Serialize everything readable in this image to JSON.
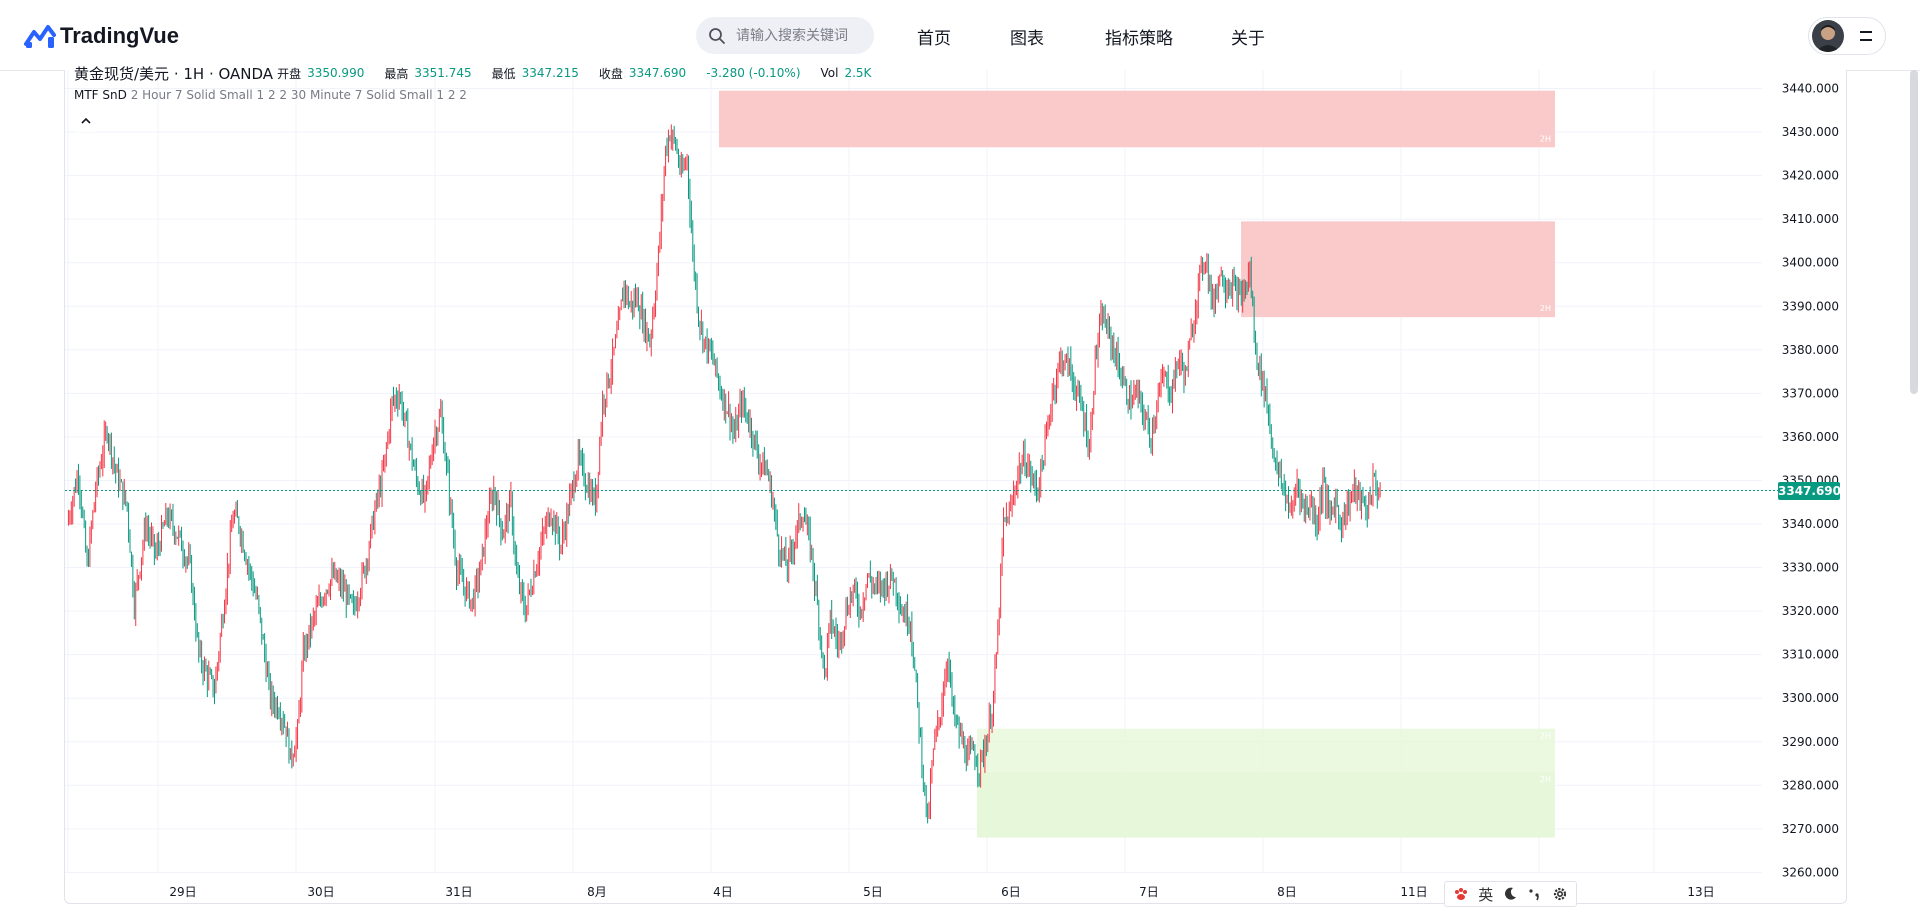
{
  "brand": {
    "name": "TradingVue"
  },
  "search": {
    "placeholder": "请输入搜索关键词"
  },
  "nav": {
    "home": "首页",
    "charts": "图表",
    "strategies": "指标策略",
    "about": "关于"
  },
  "legend": {
    "symbol": "黄金现货/美元 · 1H · OANDA",
    "open_label": "开盘",
    "open": "3350.990",
    "high_label": "最高",
    "high": "3351.745",
    "low_label": "最低",
    "low": "3347.215",
    "close_label": "收盘",
    "close": "3347.690",
    "change": "-3.280 (-0.10%)",
    "vol_label": "Vol",
    "vol": "2.5K"
  },
  "indicator": {
    "name": "MTF SnD",
    "params": "2 Hour 7 Solid Small 1 2 2 30 Minute 7 Solid Small 1 2 2"
  },
  "ime": {
    "lang": "英"
  },
  "colors": {
    "up": "#f23645",
    "down": "#089981",
    "supply": "#f9c1c1",
    "demand": "#e6f8d9",
    "last_price": "#089981"
  },
  "chart_data": {
    "type": "candlestick",
    "price_axis": [
      "3440.000",
      "3430.000",
      "3420.000",
      "3410.000",
      "3400.000",
      "3390.000",
      "3380.000",
      "3370.000",
      "3360.000",
      "3350.000",
      "3340.000",
      "3330.000",
      "3320.000",
      "3310.000",
      "3300.000",
      "3290.000",
      "3280.000",
      "3270.000",
      "3260.000"
    ],
    "ylim": [
      3260,
      3440
    ],
    "x_labels": [
      "29日",
      "30日",
      "31日",
      "8月",
      "4日",
      "5日",
      "6日",
      "7日",
      "8日",
      "11日",
      "13日"
    ],
    "last_price": "3347.690",
    "zones": [
      {
        "kind": "supply",
        "label": "2H",
        "top": 3439.5,
        "bottom": 3426.5
      },
      {
        "kind": "supply",
        "label": "2H",
        "top": 3409.5,
        "bottom": 3387.5
      },
      {
        "kind": "demand",
        "label": "2H",
        "top": 3293.0,
        "bottom": 3268.0
      },
      {
        "kind": "demand",
        "label": "2H",
        "top": 3283.0,
        "bottom": 3268.0
      }
    ],
    "path": [
      [
        0,
        3340
      ],
      [
        8,
        3352
      ],
      [
        14,
        3330
      ],
      [
        20,
        3348
      ],
      [
        28,
        3362
      ],
      [
        34,
        3352
      ],
      [
        42,
        3344
      ],
      [
        47,
        3322
      ],
      [
        55,
        3340
      ],
      [
        62,
        3333
      ],
      [
        70,
        3342
      ],
      [
        78,
        3337
      ],
      [
        86,
        3330
      ],
      [
        92,
        3310
      ],
      [
        98,
        3305
      ],
      [
        103,
        3302
      ],
      [
        109,
        3320
      ],
      [
        116,
        3342
      ],
      [
        120,
        3340
      ],
      [
        127,
        3330
      ],
      [
        133,
        3322
      ],
      [
        138,
        3310
      ],
      [
        142,
        3300
      ],
      [
        148,
        3298
      ],
      [
        153,
        3293
      ],
      [
        156,
        3286
      ],
      [
        161,
        3292
      ],
      [
        165,
        3310
      ],
      [
        172,
        3318
      ],
      [
        180,
        3325
      ],
      [
        186,
        3328
      ],
      [
        193,
        3325
      ],
      [
        200,
        3320
      ],
      [
        208,
        3330
      ],
      [
        215,
        3343
      ],
      [
        221,
        3352
      ],
      [
        227,
        3368
      ],
      [
        232,
        3370
      ],
      [
        238,
        3360
      ],
      [
        244,
        3350
      ],
      [
        250,
        3345
      ],
      [
        256,
        3360
      ],
      [
        261,
        3365
      ],
      [
        266,
        3350
      ],
      [
        272,
        3330
      ],
      [
        278,
        3325
      ],
      [
        283,
        3322
      ],
      [
        289,
        3330
      ],
      [
        293,
        3340
      ],
      [
        298,
        3348
      ],
      [
        304,
        3338
      ],
      [
        310,
        3345
      ],
      [
        314,
        3328
      ],
      [
        320,
        3320
      ],
      [
        327,
        3330
      ],
      [
        333,
        3338
      ],
      [
        338,
        3343
      ],
      [
        345,
        3335
      ],
      [
        351,
        3345
      ],
      [
        357,
        3355
      ],
      [
        362,
        3350
      ],
      [
        369,
        3345
      ],
      [
        374,
        3368
      ],
      [
        380,
        3376
      ],
      [
        385,
        3385
      ],
      [
        389,
        3395
      ],
      [
        393,
        3390
      ],
      [
        398,
        3392
      ],
      [
        403,
        3386
      ],
      [
        407,
        3382
      ],
      [
        411,
        3394
      ],
      [
        414,
        3406
      ],
      [
        418,
        3426
      ],
      [
        421,
        3430
      ],
      [
        425,
        3427
      ],
      [
        429,
        3420
      ],
      [
        433,
        3424
      ],
      [
        437,
        3402
      ],
      [
        441,
        3388
      ],
      [
        445,
        3382
      ],
      [
        451,
        3378
      ],
      [
        457,
        3370
      ],
      [
        462,
        3366
      ],
      [
        466,
        3360
      ],
      [
        471,
        3368
      ],
      [
        477,
        3363
      ],
      [
        483,
        3355
      ],
      [
        489,
        3352
      ],
      [
        493,
        3345
      ],
      [
        497,
        3335
      ],
      [
        503,
        3330
      ],
      [
        509,
        3338
      ],
      [
        514,
        3343
      ],
      [
        520,
        3333
      ],
      [
        525,
        3318
      ],
      [
        529,
        3305
      ],
      [
        533,
        3318
      ],
      [
        539,
        3312
      ],
      [
        544,
        3320
      ],
      [
        549,
        3325
      ],
      [
        554,
        3320
      ],
      [
        559,
        3328
      ],
      [
        565,
        3325
      ],
      [
        571,
        3326
      ],
      [
        577,
        3328
      ],
      [
        583,
        3320
      ],
      [
        589,
        3318
      ],
      [
        594,
        3298
      ],
      [
        598,
        3282
      ],
      [
        601,
        3271
      ],
      [
        605,
        3288
      ],
      [
        610,
        3297
      ],
      [
        615,
        3310
      ],
      [
        619,
        3296
      ],
      [
        624,
        3291
      ],
      [
        629,
        3286
      ],
      [
        633,
        3288
      ],
      [
        637,
        3284
      ],
      [
        642,
        3290
      ],
      [
        647,
        3300
      ],
      [
        650,
        3315
      ],
      [
        654,
        3340
      ],
      [
        659,
        3343
      ],
      [
        664,
        3352
      ],
      [
        669,
        3355
      ],
      [
        674,
        3350
      ],
      [
        678,
        3348
      ],
      [
        684,
        3360
      ],
      [
        688,
        3370
      ],
      [
        694,
        3378
      ],
      [
        700,
        3376
      ],
      [
        705,
        3370
      ],
      [
        710,
        3365
      ],
      [
        714,
        3357
      ],
      [
        718,
        3378
      ],
      [
        723,
        3388
      ],
      [
        728,
        3383
      ],
      [
        733,
        3378
      ],
      [
        738,
        3372
      ],
      [
        742,
        3368
      ],
      [
        747,
        3370
      ],
      [
        752,
        3365
      ],
      [
        757,
        3360
      ],
      [
        761,
        3368
      ],
      [
        766,
        3374
      ],
      [
        771,
        3370
      ],
      [
        776,
        3378
      ],
      [
        781,
        3374
      ],
      [
        785,
        3383
      ],
      [
        790,
        3395
      ],
      [
        795,
        3402
      ],
      [
        800,
        3390
      ],
      [
        805,
        3398
      ],
      [
        809,
        3395
      ],
      [
        814,
        3395
      ],
      [
        818,
        3392
      ],
      [
        822,
        3393
      ],
      [
        826,
        3398
      ],
      [
        830,
        3380
      ],
      [
        833,
        3375
      ],
      [
        837,
        3370
      ],
      [
        841,
        3360
      ],
      [
        845,
        3352
      ],
      [
        850,
        3348
      ],
      [
        855,
        3342
      ],
      [
        859,
        3350
      ],
      [
        864,
        3343
      ],
      [
        869,
        3345
      ],
      [
        873,
        3340
      ],
      [
        877,
        3350
      ],
      [
        881,
        3342
      ],
      [
        886,
        3345
      ],
      [
        890,
        3340
      ],
      [
        895,
        3345
      ],
      [
        899,
        3348
      ],
      [
        904,
        3345
      ],
      [
        908,
        3343
      ],
      [
        912,
        3350
      ],
      [
        917,
        3347
      ]
    ]
  }
}
